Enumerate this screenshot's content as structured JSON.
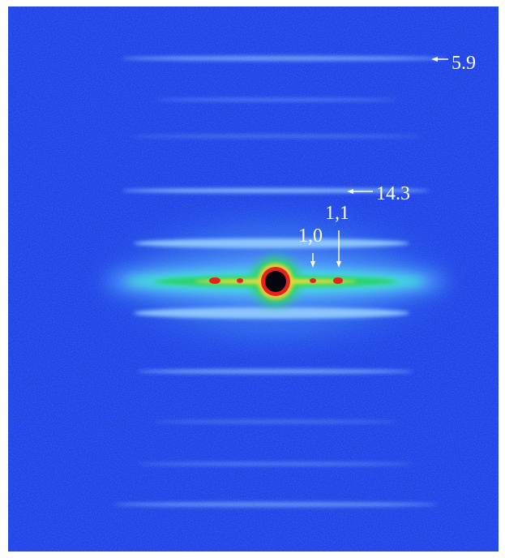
{
  "annotations": {
    "spacing_top": "5.9",
    "spacing_mid": "14.3",
    "reflection_11": "1,1",
    "reflection_10": "1,0"
  }
}
